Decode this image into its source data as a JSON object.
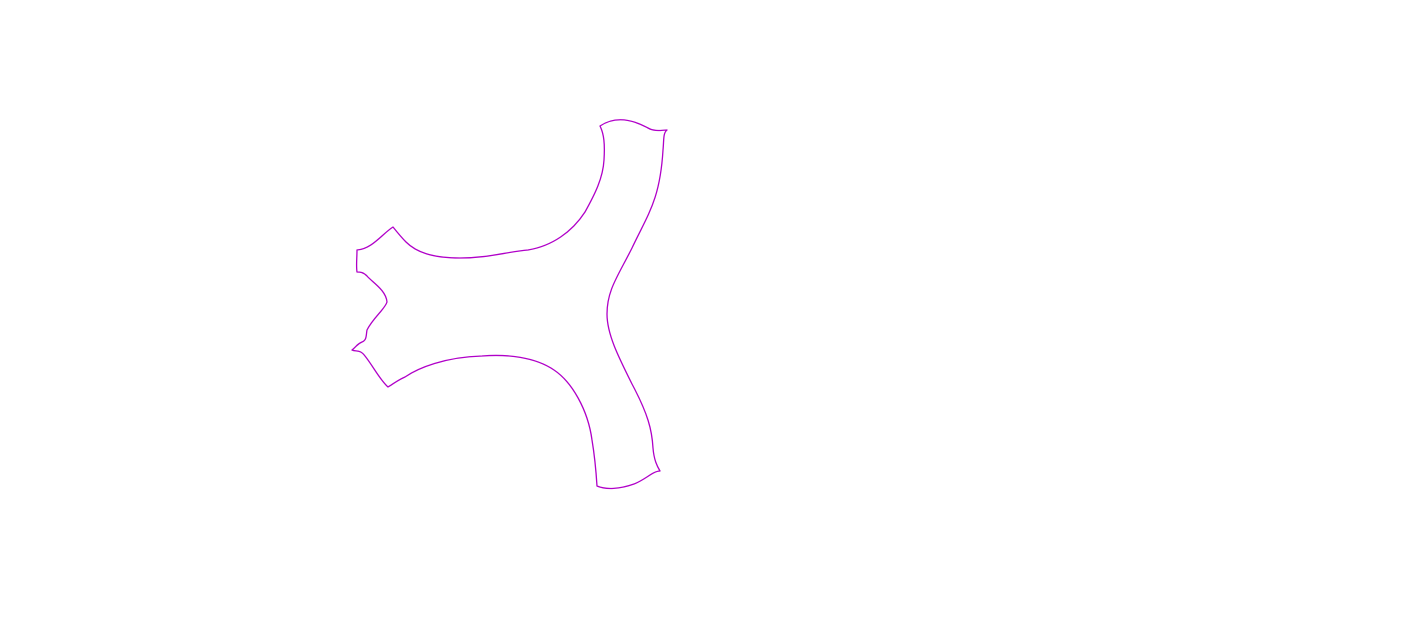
{
  "figure": {
    "background_color": "#ffffff",
    "outline_color": "#b000c8",
    "shape": "three-armed-outline"
  }
}
